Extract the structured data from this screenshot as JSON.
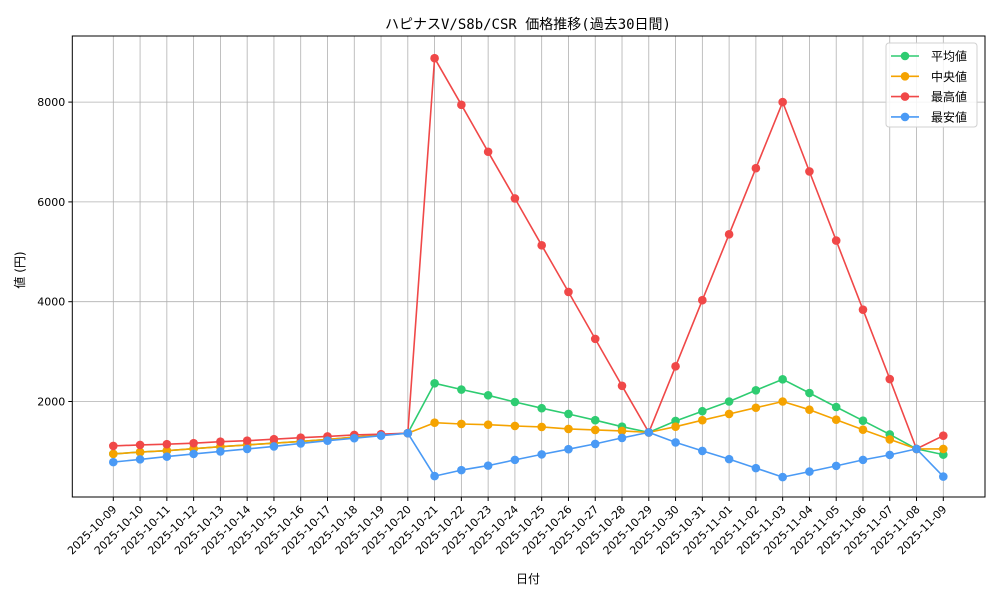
{
  "chart_data": {
    "type": "line",
    "title": "ハピナスV/S8b/CSR 価格推移(過去30日間)",
    "xlabel": "日付",
    "ylabel": "値 (円)",
    "ylim": [
      0,
      9300
    ],
    "yticks": [
      2000,
      4000,
      6000,
      8000
    ],
    "grid": true,
    "legend_position": "upper right",
    "categories": [
      "2025-10-09",
      "2025-10-10",
      "2025-10-11",
      "2025-10-12",
      "2025-10-13",
      "2025-10-14",
      "2025-10-15",
      "2025-10-16",
      "2025-10-17",
      "2025-10-18",
      "2025-10-19",
      "2025-10-20",
      "2025-10-21",
      "2025-10-22",
      "2025-10-23",
      "2025-10-24",
      "2025-10-25",
      "2025-10-26",
      "2025-10-27",
      "2025-10-28",
      "2025-10-29",
      "2025-10-30",
      "2025-10-31",
      "2025-11-01",
      "2025-11-02",
      "2025-11-03",
      "2025-11-04",
      "2025-11-05",
      "2025-11-06",
      "2025-11-07",
      "2025-11-08",
      "2025-11-09"
    ],
    "series": [
      {
        "name": "平均値",
        "color": "#2ecc71",
        "values": [
          950,
          985,
          1015,
          1055,
          1095,
          1130,
          1165,
          1200,
          1240,
          1285,
          1330,
          1365,
          2365,
          2240,
          2125,
          1990,
          1865,
          1750,
          1625,
          1495,
          1380,
          1610,
          1805,
          2000,
          2225,
          2445,
          2170,
          1890,
          1615,
          1340,
          1050,
          935
        ]
      },
      {
        "name": "中央値",
        "color": "#f5a300",
        "values": [
          950,
          985,
          1015,
          1055,
          1095,
          1130,
          1165,
          1200,
          1240,
          1285,
          1330,
          1365,
          1575,
          1550,
          1535,
          1510,
          1490,
          1450,
          1430,
          1410,
          1380,
          1495,
          1625,
          1750,
          1875,
          2000,
          1835,
          1635,
          1435,
          1240,
          1050,
          1050
        ]
      },
      {
        "name": "最高値",
        "color": "#f04848",
        "values": [
          1110,
          1130,
          1145,
          1165,
          1195,
          1215,
          1245,
          1275,
          1300,
          1330,
          1345,
          1365,
          8880,
          7945,
          7005,
          6070,
          5130,
          4195,
          3255,
          2315,
          1380,
          2705,
          4030,
          5350,
          6675,
          8000,
          6610,
          5225,
          3840,
          2450,
          1050,
          1315
        ]
      },
      {
        "name": "最安値",
        "color": "#4a9af5",
        "values": [
          785,
          840,
          895,
          950,
          1000,
          1050,
          1100,
          1160,
          1215,
          1265,
          1315,
          1365,
          505,
          625,
          715,
          830,
          940,
          1045,
          1150,
          1270,
          1380,
          1180,
          1010,
          845,
          665,
          485,
          595,
          710,
          830,
          930,
          1050,
          495
        ]
      }
    ]
  }
}
